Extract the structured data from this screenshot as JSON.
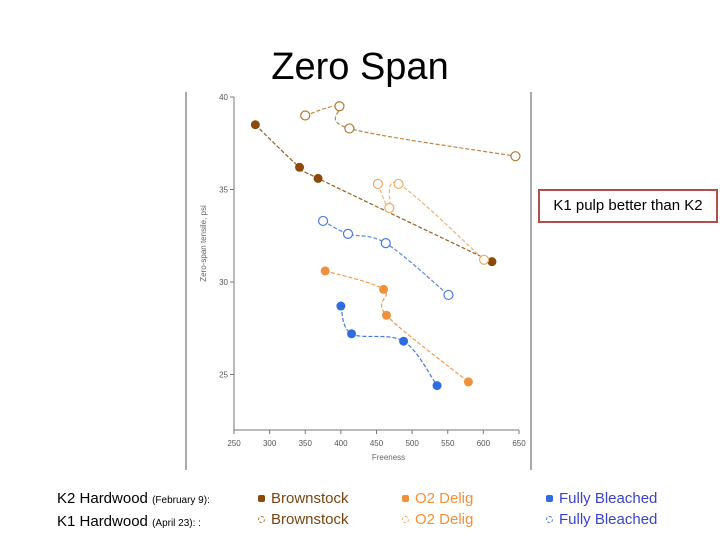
{
  "title": "Zero Span",
  "callout": "K1 pulp better than K2",
  "legend": {
    "rows": [
      {
        "label": "K2 Hardwood",
        "date": "(February 9):"
      },
      {
        "label": "K1 Hardwood",
        "date": "(April 23): :"
      }
    ],
    "series": [
      {
        "filled_label": "Brownstock",
        "open_label": "Brownstock",
        "color": "#8b4a0a",
        "text_color": "#7a4510"
      },
      {
        "filled_label": "O2 Delig",
        "open_label": "O2 Delig",
        "color": "#f0913a",
        "text_color": "#f0913a"
      },
      {
        "filled_label": "Fully Bleached",
        "open_label": "Fully Bleached",
        "color": "#2f6ce0",
        "text_color": "#3a44c8"
      }
    ]
  },
  "chart_data": {
    "type": "scatter",
    "title": "Zero Span",
    "xlabel": "Freeness",
    "ylabel": "Zero-span tensile, psi",
    "xlim": [
      250,
      650
    ],
    "ylim": [
      22,
      40
    ],
    "xticks": [
      250,
      300,
      350,
      400,
      450,
      500,
      550,
      600,
      650
    ],
    "yticks": [
      25,
      30,
      35,
      40
    ],
    "series": [
      {
        "name": "K2 Hardwood Brownstock",
        "style": "filled",
        "color": "#8b4a0a",
        "x": [
          280,
          342,
          368,
          612
        ],
        "y": [
          38.5,
          36.2,
          35.6,
          31.1
        ]
      },
      {
        "name": "K1 Hardwood Brownstock",
        "style": "open",
        "color": "#b5782f",
        "x": [
          350,
          398,
          412,
          645
        ],
        "y": [
          39.0,
          39.5,
          38.3,
          36.8
        ]
      },
      {
        "name": "K2 Hardwood O2 Delig",
        "style": "filled",
        "color": "#f0913a",
        "x": [
          378,
          460,
          464,
          579
        ],
        "y": [
          30.6,
          29.6,
          28.2,
          24.6
        ]
      },
      {
        "name": "K1 Hardwood O2 Delig",
        "style": "open",
        "color": "#f2a860",
        "x": [
          452,
          468,
          481,
          601
        ],
        "y": [
          35.3,
          34.0,
          35.3,
          31.2
        ]
      },
      {
        "name": "K2 Hardwood Fully Bleached",
        "style": "filled",
        "color": "#2f6ce0",
        "x": [
          400,
          415,
          488,
          535
        ],
        "y": [
          28.7,
          27.2,
          26.8,
          24.4
        ]
      },
      {
        "name": "K1 Hardwood Fully Bleached",
        "style": "open",
        "color": "#4a7ae0",
        "x": [
          375,
          410,
          463,
          551
        ],
        "y": [
          33.3,
          32.6,
          32.1,
          29.3
        ]
      }
    ]
  }
}
